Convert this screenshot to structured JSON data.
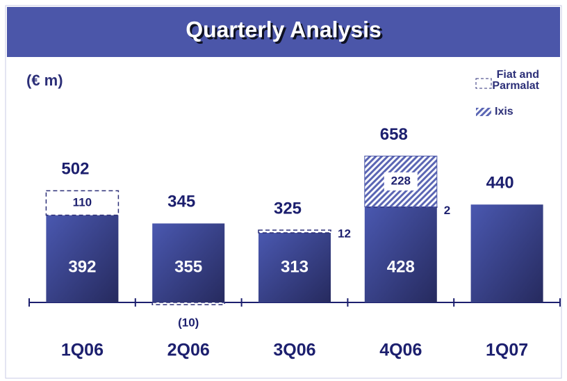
{
  "chart_data": {
    "type": "stacked_bar",
    "title": "Quarterly Analysis",
    "subtitle": "(€ m)",
    "categories": [
      "1Q06",
      "2Q06",
      "3Q06",
      "4Q06",
      "1Q07"
    ],
    "series": [
      {
        "name": null,
        "color": "#3f4a9e",
        "values": [
          392,
          355,
          313,
          428,
          440
        ],
        "value_labels": [
          "392",
          "355",
          "313",
          "428",
          null
        ]
      },
      {
        "name": "Fiat and Parmalat",
        "color": "#2c2f78",
        "style": "dashed",
        "values": [
          110,
          -10,
          12,
          2,
          null
        ],
        "value_labels": [
          "110",
          "(10)",
          "12",
          "2",
          null
        ]
      },
      {
        "name": "Ixis",
        "color": "#4a55a8",
        "style": "hatched",
        "values": [
          null,
          null,
          null,
          228,
          null
        ],
        "value_labels": [
          null,
          null,
          null,
          "228",
          null
        ]
      }
    ],
    "totals": [
      502,
      345,
      325,
      658,
      440
    ]
  }
}
